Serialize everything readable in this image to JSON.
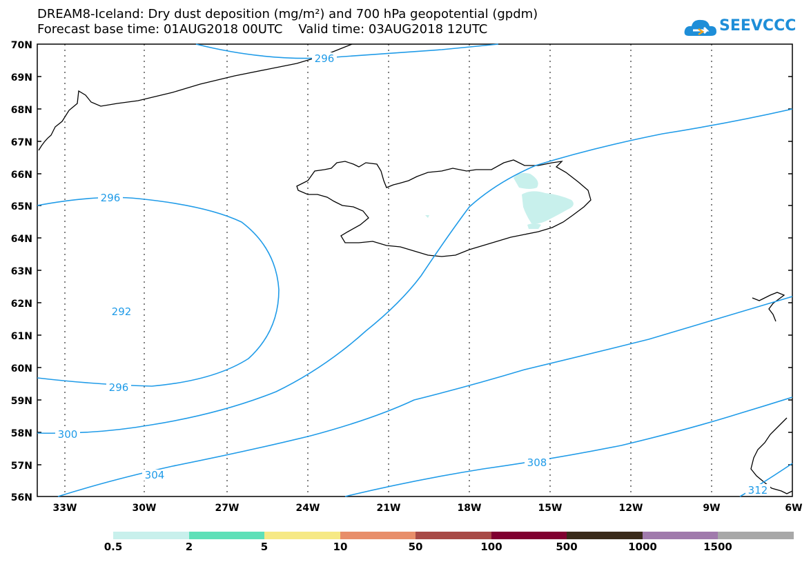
{
  "title": {
    "line1": "DREAM8-Iceland: Dry dust deposition (mg/m²) and 700 hPa geopotential (gpdm)",
    "line2": "Forecast base time: 01AUG2018 00UTC    Valid time: 03AUG2018 12UTC"
  },
  "logo": {
    "text": "SEEVCCC",
    "icon": "cloud-logo-icon",
    "color": "#1e8ed8"
  },
  "map": {
    "lat_labels": [
      "70N",
      "69N",
      "68N",
      "67N",
      "66N",
      "65N",
      "64N",
      "63N",
      "62N",
      "61N",
      "60N",
      "59N",
      "58N",
      "57N",
      "56N"
    ],
    "lon_labels": [
      "33W",
      "30W",
      "27W",
      "24W",
      "21W",
      "18W",
      "15W",
      "12W",
      "9W",
      "6W"
    ],
    "contour_color": "#1f9be8",
    "contour_labels": [
      "296",
      "296",
      "292",
      "296",
      "300",
      "304",
      "308",
      "312"
    ],
    "dust_color": "#c8f0ec"
  },
  "colorbar": {
    "colors": [
      "#c8f0ec",
      "#5ee0b8",
      "#f6e985",
      "#e88e6a",
      "#a84a47",
      "#800030",
      "#3a2a1a",
      "#a07aac",
      "#a8a8a8"
    ],
    "labels": [
      "0.5",
      "2",
      "5",
      "10",
      "50",
      "100",
      "500",
      "1000",
      "1500"
    ]
  }
}
